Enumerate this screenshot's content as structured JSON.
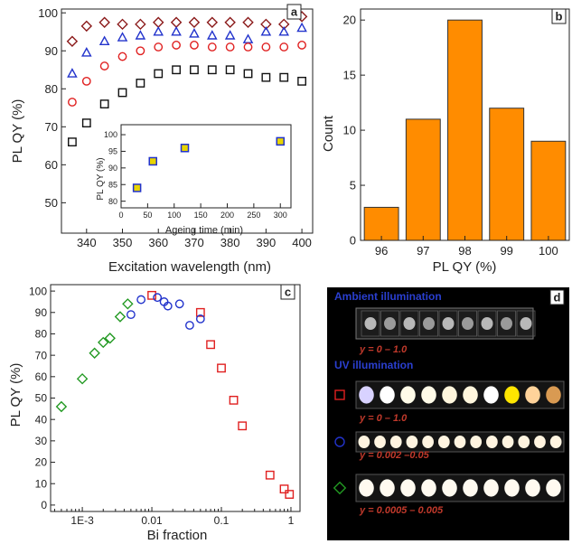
{
  "chart_data": [
    {
      "panel": "a",
      "type": "scatter",
      "xlabel": "Excitation wavelength (nm)",
      "ylabel": "PL QY (%)",
      "xlim": [
        333,
        403
      ],
      "ylim": [
        42,
        101
      ],
      "xticks": [
        340,
        350,
        360,
        370,
        380,
        390,
        400
      ],
      "yticks": [
        50,
        60,
        70,
        80,
        90,
        100
      ],
      "series": [
        {
          "marker": "diamond",
          "color": "#8b1a1a",
          "x": [
            336,
            340,
            345,
            350,
            355,
            360,
            365,
            370,
            375,
            380,
            385,
            390,
            395,
            400
          ],
          "y": [
            92.5,
            96.5,
            97.5,
            97,
            97,
            97.5,
            97.5,
            97.5,
            97.5,
            97.5,
            97.5,
            97,
            97,
            99
          ]
        },
        {
          "marker": "triangle",
          "color": "#2233cc",
          "x": [
            336,
            340,
            345,
            350,
            355,
            360,
            365,
            370,
            375,
            380,
            385,
            390,
            395,
            400
          ],
          "y": [
            84,
            89.5,
            92.5,
            93.5,
            94,
            95,
            95,
            94.5,
            94,
            94,
            93,
            95,
            95,
            96
          ]
        },
        {
          "marker": "circle",
          "color": "#e02020",
          "x": [
            336,
            340,
            345,
            350,
            355,
            360,
            365,
            370,
            375,
            380,
            385,
            390,
            395,
            400
          ],
          "y": [
            76.5,
            82,
            86,
            88.5,
            90,
            91,
            91.5,
            91.5,
            91,
            91,
            91,
            91,
            91,
            91.5
          ]
        },
        {
          "marker": "square",
          "color": "#111111",
          "x": [
            336,
            340,
            345,
            350,
            355,
            360,
            365,
            370,
            375,
            380,
            385,
            390,
            395,
            400
          ],
          "y": [
            66,
            71,
            76,
            79,
            81.5,
            84,
            85,
            85,
            85,
            85,
            84,
            83,
            83,
            82
          ]
        }
      ],
      "inset": {
        "type": "scatter",
        "xlabel": "Ageing time (min)",
        "ylabel": "PL QY (%)",
        "xlim": [
          0,
          320
        ],
        "ylim": [
          78,
          103
        ],
        "xticks": [
          0,
          50,
          100,
          150,
          200,
          250,
          300
        ],
        "yticks": [
          80,
          85,
          90,
          95,
          100
        ],
        "x": [
          30,
          60,
          120,
          300
        ],
        "y": [
          84,
          92,
          96,
          98
        ]
      }
    },
    {
      "panel": "b",
      "type": "bar",
      "xlabel": "PL QY (%)",
      "ylabel": "Count",
      "categories": [
        "96",
        "97",
        "98",
        "99",
        "100"
      ],
      "values": [
        3,
        11,
        20,
        12,
        9
      ],
      "ylim": [
        0,
        21
      ],
      "yticks": [
        0,
        5,
        10,
        15,
        20
      ],
      "bar_color": "#ff8c00"
    },
    {
      "panel": "c",
      "type": "scatter",
      "xlabel": "Bi fraction",
      "ylabel": "PL QY (%)",
      "xscale": "log",
      "xlim": [
        0.00035,
        1.35
      ],
      "ylim": [
        -3,
        103
      ],
      "xticks": [
        0.001,
        0.01,
        0.1,
        1
      ],
      "xticklabels": [
        "1E-3",
        "0.01",
        "0.1",
        "1"
      ],
      "yticks": [
        0,
        10,
        20,
        30,
        40,
        50,
        60,
        70,
        80,
        90,
        100
      ],
      "series": [
        {
          "marker": "square",
          "color": "#e02020",
          "x": [
            0.01,
            0.05,
            0.07,
            0.1,
            0.15,
            0.2,
            0.5,
            0.8,
            0.95
          ],
          "y": [
            98,
            90,
            75,
            64,
            49,
            37,
            14,
            7.5,
            5
          ]
        },
        {
          "marker": "circle",
          "color": "#2233cc",
          "x": [
            0.005,
            0.007,
            0.012,
            0.015,
            0.017,
            0.025,
            0.035,
            0.05
          ],
          "y": [
            89,
            96,
            97,
            95,
            93,
            94,
            84,
            87
          ]
        },
        {
          "marker": "diamond",
          "color": "#229922",
          "x": [
            0.0005,
            0.001,
            0.0015,
            0.002,
            0.0025,
            0.0035,
            0.0045
          ],
          "y": [
            46,
            59,
            71,
            76,
            78,
            88,
            94
          ]
        }
      ]
    }
  ],
  "panel_labels": {
    "a": "a",
    "b": "b",
    "c": "c",
    "d": "d"
  },
  "photos": {
    "ambient_title": "Ambient illumination",
    "ambient_caption": "y = 0 – 1.0",
    "uv_title": "UV illumination",
    "uv_rows": [
      {
        "marker": "square",
        "color": "#e02020",
        "caption": "y = 0 – 1.0"
      },
      {
        "marker": "circle",
        "color": "#2233cc",
        "caption": "y = 0.002 –0.05"
      },
      {
        "marker": "diamond",
        "color": "#229922",
        "caption": "y = 0.0005 – 0.005"
      }
    ]
  }
}
